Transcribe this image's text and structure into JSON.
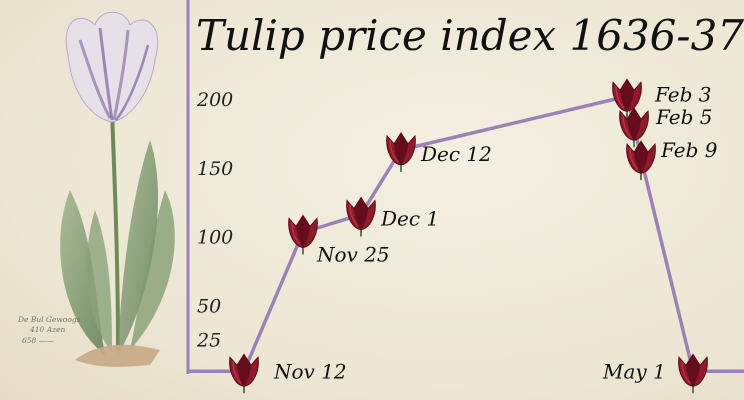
{
  "plate": {
    "caption_line1": "De Bul Gewoogs",
    "caption_line2": "410 Azen",
    "caption_line3": "658 ——"
  },
  "colors": {
    "line": "#9a82b4",
    "tulip_dark": "#5c0a1a",
    "tulip_mid": "#8e1a2c",
    "tulip_light": "#c23a4a",
    "stem": "#5e7d4a"
  },
  "chart_data": {
    "type": "line",
    "title": "Tulip price index 1636-37",
    "xlabel": "",
    "ylabel": "",
    "y_ticks": [
      25,
      50,
      100,
      150,
      200
    ],
    "ylim": [
      0,
      215
    ],
    "grid": false,
    "points": [
      {
        "date": "Nov 12",
        "value": 2,
        "label": "Nov 12"
      },
      {
        "date": "Nov 25",
        "value": 103,
        "label": "Nov 25"
      },
      {
        "date": "Dec 1",
        "value": 116,
        "label": "Dec 1"
      },
      {
        "date": "Dec 12",
        "value": 163,
        "label": "Dec 12"
      },
      {
        "date": "Feb 3",
        "value": 202,
        "label": "Feb 3"
      },
      {
        "date": "Feb 5",
        "value": 181,
        "label": "Feb 5"
      },
      {
        "date": "Feb 9",
        "value": 157,
        "label": "Feb 9"
      },
      {
        "date": "May 1",
        "value": 2,
        "label": "May 1"
      }
    ]
  }
}
